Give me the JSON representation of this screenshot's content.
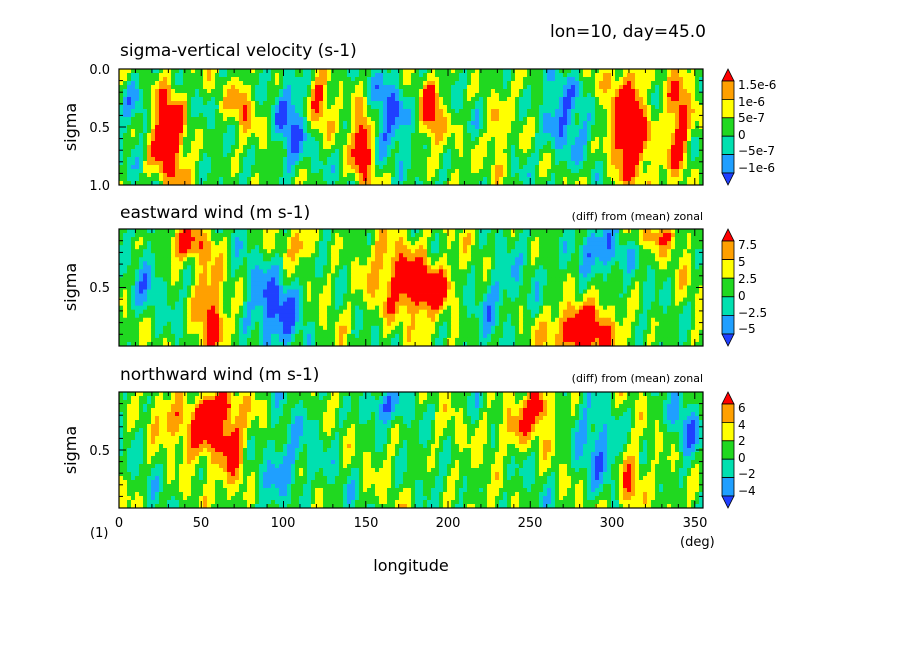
{
  "header": "lon=10, day=45.0",
  "footnote": "(1)",
  "colors": {
    "levels": [
      "#1f3fff",
      "#1f9fff",
      "#00e0b0",
      "#20d820",
      "#ffff00",
      "#ffa000",
      "#ff0000"
    ]
  },
  "chart_data": [
    {
      "type": "heatmap",
      "title": "sigma-vertical velocity (s-1)",
      "subtitle": "",
      "xlabel": "",
      "ylabel": "sigma",
      "xlim": [
        0,
        355
      ],
      "ylim": [
        1.0,
        0.0
      ],
      "yticks": [
        "0.0",
        "0.5",
        "1.0"
      ],
      "colorbar": {
        "labels": [
          "1.5e-6",
          "1e-6",
          "5e-7",
          "0",
          "−5e-7",
          "−1e-6"
        ]
      },
      "features": [
        {
          "x": 30,
          "y": 0.55,
          "sx": 7,
          "sy": 0.3,
          "v": 4.2
        },
        {
          "x": 148,
          "y": 0.65,
          "sx": 4,
          "sy": 0.25,
          "v": 4.0
        },
        {
          "x": 190,
          "y": 0.35,
          "sx": 4,
          "sy": 0.2,
          "v": 3.5
        },
        {
          "x": 310,
          "y": 0.5,
          "sx": 8,
          "sy": 0.35,
          "v": 4.5
        },
        {
          "x": 340,
          "y": 0.5,
          "sx": 5,
          "sy": 0.3,
          "v": 3.8
        },
        {
          "x": 122,
          "y": 0.3,
          "sx": 4,
          "sy": 0.15,
          "v": 2.8
        },
        {
          "x": 75,
          "y": 0.3,
          "sx": 4,
          "sy": 0.15,
          "v": 2.2
        },
        {
          "x": 230,
          "y": 0.6,
          "sx": 4,
          "sy": 0.2,
          "v": 2.2
        },
        {
          "x": 104,
          "y": 0.5,
          "sx": 6,
          "sy": 0.3,
          "v": -2.5
        },
        {
          "x": 165,
          "y": 0.35,
          "sx": 8,
          "sy": 0.3,
          "v": -2.2
        },
        {
          "x": 270,
          "y": 0.45,
          "sx": 10,
          "sy": 0.3,
          "v": -2.0
        },
        {
          "x": 10,
          "y": 0.3,
          "sx": 6,
          "sy": 0.2,
          "v": -1.8
        }
      ]
    },
    {
      "type": "heatmap",
      "title": "eastward wind (m s-1)",
      "subtitle": "(diff) from (mean) zonal",
      "xlabel": "",
      "ylabel": "sigma",
      "xlim": [
        0,
        355
      ],
      "ylim": [
        0.9,
        0.1
      ],
      "yticks": [
        "0.5"
      ],
      "colorbar": {
        "labels": [
          "7.5",
          "5",
          "2.5",
          "0",
          "−2.5",
          "−5"
        ]
      },
      "features": [
        {
          "x": 175,
          "y": 0.45,
          "sx": 18,
          "sy": 0.2,
          "v": 2.6
        },
        {
          "x": 190,
          "y": 0.5,
          "sx": 8,
          "sy": 0.08,
          "v": 3.8
        },
        {
          "x": 280,
          "y": 0.8,
          "sx": 13,
          "sy": 0.12,
          "v": 4.5
        },
        {
          "x": 55,
          "y": 0.75,
          "sx": 6,
          "sy": 0.25,
          "v": 3.2
        },
        {
          "x": 40,
          "y": 0.2,
          "sx": 10,
          "sy": 0.08,
          "v": 2.6
        },
        {
          "x": 110,
          "y": 0.2,
          "sx": 6,
          "sy": 0.08,
          "v": 2.0
        },
        {
          "x": 330,
          "y": 0.15,
          "sx": 15,
          "sy": 0.06,
          "v": 1.6
        },
        {
          "x": 95,
          "y": 0.65,
          "sx": 12,
          "sy": 0.2,
          "v": -2.6
        },
        {
          "x": 290,
          "y": 0.25,
          "sx": 12,
          "sy": 0.12,
          "v": -2.4
        },
        {
          "x": 230,
          "y": 0.55,
          "sx": 10,
          "sy": 0.2,
          "v": -1.8
        },
        {
          "x": 15,
          "y": 0.5,
          "sx": 8,
          "sy": 0.2,
          "v": -1.4
        }
      ]
    },
    {
      "type": "heatmap",
      "title": "northward wind (m s-1)",
      "subtitle": "(diff) from (mean) zonal",
      "xlabel": "longitude",
      "xunit": "(deg)",
      "ylabel": "sigma",
      "xlim": [
        0,
        355
      ],
      "ylim": [
        0.9,
        0.1
      ],
      "xticks": [
        "0",
        "50",
        "100",
        "150",
        "200",
        "250",
        "300",
        "350"
      ],
      "yticks": [
        "0.5"
      ],
      "colorbar": {
        "labels": [
          "6",
          "4",
          "2",
          "0",
          "−2",
          "−4"
        ]
      },
      "features": [
        {
          "x": 55,
          "y": 0.35,
          "sx": 10,
          "sy": 0.15,
          "v": 3.5
        },
        {
          "x": 70,
          "y": 0.55,
          "sx": 6,
          "sy": 0.2,
          "v": 2.6
        },
        {
          "x": 60,
          "y": 0.2,
          "sx": 6,
          "sy": 0.06,
          "v": 3.6
        },
        {
          "x": 255,
          "y": 0.2,
          "sx": 5,
          "sy": 0.08,
          "v": 3.4
        },
        {
          "x": 310,
          "y": 0.75,
          "sx": 5,
          "sy": 0.15,
          "v": 3.0
        },
        {
          "x": 240,
          "y": 0.35,
          "sx": 10,
          "sy": 0.12,
          "v": 2.0
        },
        {
          "x": 30,
          "y": 0.3,
          "sx": 8,
          "sy": 0.1,
          "v": 1.6
        },
        {
          "x": 160,
          "y": 0.2,
          "sx": 10,
          "sy": 0.08,
          "v": -2.0
        },
        {
          "x": 100,
          "y": 0.6,
          "sx": 10,
          "sy": 0.2,
          "v": -2.0
        },
        {
          "x": 290,
          "y": 0.5,
          "sx": 10,
          "sy": 0.2,
          "v": -1.8
        },
        {
          "x": 345,
          "y": 0.35,
          "sx": 6,
          "sy": 0.15,
          "v": -1.6
        }
      ]
    }
  ]
}
